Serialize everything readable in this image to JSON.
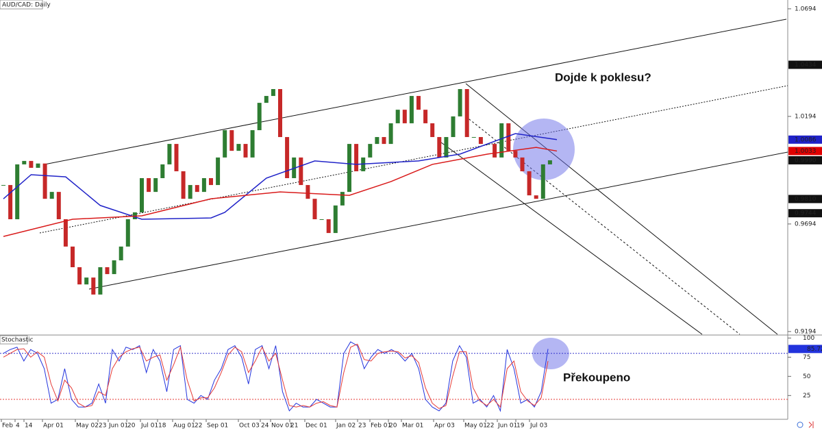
{
  "chart_data": {
    "type": "candlestick",
    "title": "AUD/CAD: Daily",
    "annotations": [
      "Dojde k poklesu?",
      "Překoupeno"
    ],
    "ylim": [
      0.9181,
      1.0735
    ],
    "yticks": [
      1.0694,
      1.0194,
      0.9694,
      0.9194
    ],
    "up_color": "#2e7d32",
    "down_color": "#c62828",
    "closes": [
      0.9875,
      0.9716,
      0.9971,
      0.9987,
      0.9955,
      0.9975,
      0.9811,
      0.9843,
      0.9716,
      0.9589,
      0.9493,
      0.9413,
      0.9445,
      0.9366,
      0.9493,
      0.9461,
      0.9525,
      0.9589,
      0.9716,
      0.9748,
      0.9907,
      0.9843,
      0.9907,
      0.9971,
      1.0066,
      0.9939,
      0.9811,
      0.9875,
      0.9843,
      0.9907,
      0.9875,
      1.0003,
      1.013,
      1.0034,
      1.0066,
      1.0003,
      1.013,
      1.0257,
      1.0289,
      1.0321,
      1.0098,
      0.9907,
      1.0003,
      0.9875,
      0.9811,
      0.9716,
      0.9716,
      0.9652,
      0.978,
      0.9843,
      1.0066,
      0.9939,
      1.0003,
      1.0066,
      1.0098,
      1.0066,
      1.0162,
      1.0225,
      1.0162,
      1.0289,
      1.0225,
      1.0162,
      1.0098,
      1.0003,
      1.0098,
      1.0194,
      1.0321,
      1.0098,
      1.0098,
      1.0066,
      1.0066,
      1.0003,
      1.0162,
      1.0034,
      1.0003,
      0.9939,
      0.9827,
      0.9811,
      0.9971,
      0.999
    ],
    "series": [
      {
        "color": "#1f22c8",
        "x": [
          0,
          4,
          9,
          14,
          20,
          30,
          32,
          38,
          45,
          51,
          60,
          66,
          74,
          80
        ],
        "values": [
          0.9811,
          0.9923,
          0.9913,
          0.978,
          0.9716,
          0.9722,
          0.9748,
          0.9907,
          0.9987,
          0.9971,
          0.9987,
          1.0019,
          1.0114,
          1.0086
        ]
      },
      {
        "color": "#d91a1a",
        "x": [
          0,
          10,
          20,
          30,
          40,
          50,
          56,
          62,
          70,
          77,
          80
        ],
        "values": [
          0.9636,
          0.9716,
          0.9732,
          0.9811,
          0.9843,
          0.9827,
          0.9891,
          0.9971,
          1.0019,
          1.005,
          1.0033
        ]
      }
    ],
    "price_labels": [
      {
        "value": 1.0434,
        "color": "#111111"
      },
      {
        "value": 1.0086,
        "color": "#1f22c8"
      },
      {
        "value": 1.0033,
        "color": "#e00000"
      },
      {
        "value": 0.999,
        "label": "0.9990",
        "color": "#111111"
      },
      {
        "value": 0.981,
        "label": "0.9810",
        "color": "#111111"
      },
      {
        "value": 0.9744,
        "color": "#111111"
      }
    ],
    "x_labels": [
      "Feb",
      "4",
      "14",
      "Apr 01",
      "May 02",
      "23",
      "Jun 01",
      "20",
      "Jul 01",
      "18",
      "Aug 01",
      "22",
      "Sep 01",
      "Oct 03",
      "24",
      "Nov 01",
      "21",
      "Dec 01",
      "Jan 02",
      "23",
      "Feb 01",
      "20",
      "Mar 01",
      "Apr 03",
      "May 01",
      "22",
      "Jun 01",
      "19",
      "Jul 03"
    ],
    "stochastic": {
      "title": "Stochastic",
      "ylim": [
        -6,
        103
      ],
      "yticks": [
        100,
        75,
        50,
        25
      ],
      "levels": [
        {
          "value": 80,
          "color": "#3333cc"
        },
        {
          "value": 20,
          "color": "#e53935"
        }
      ],
      "series": [
        {
          "color": "#2233dd",
          "values": [
            80,
            85,
            88,
            70,
            85,
            80,
            60,
            15,
            20,
            60,
            20,
            10,
            10,
            15,
            40,
            15,
            85,
            70,
            88,
            85,
            90,
            55,
            85,
            70,
            30,
            85,
            90,
            20,
            15,
            25,
            20,
            45,
            60,
            85,
            90,
            75,
            40,
            85,
            90,
            60,
            90,
            30,
            5,
            15,
            10,
            10,
            20,
            15,
            10,
            10,
            80,
            95,
            90,
            60,
            75,
            85,
            80,
            85,
            80,
            70,
            80,
            60,
            20,
            10,
            5,
            15,
            70,
            90,
            75,
            15,
            20,
            10,
            25,
            5,
            85,
            60,
            15,
            20,
            10,
            30,
            85.72
          ]
        },
        {
          "color": "#e53935",
          "values": [
            75,
            80,
            85,
            86,
            75,
            82,
            75,
            40,
            18,
            45,
            35,
            15,
            10,
            12,
            30,
            25,
            60,
            75,
            82,
            86,
            88,
            70,
            75,
            78,
            45,
            65,
            88,
            45,
            18,
            22,
            22,
            35,
            55,
            78,
            88,
            82,
            55,
            70,
            88,
            70,
            80,
            45,
            12,
            10,
            12,
            10,
            15,
            17,
            12,
            10,
            55,
            88,
            92,
            72,
            70,
            80,
            82,
            83,
            82,
            74,
            77,
            68,
            35,
            15,
            8,
            12,
            50,
            82,
            82,
            35,
            18,
            12,
            20,
            10,
            60,
            70,
            30,
            18,
            12,
            22,
            70
          ]
        }
      ]
    }
  }
}
